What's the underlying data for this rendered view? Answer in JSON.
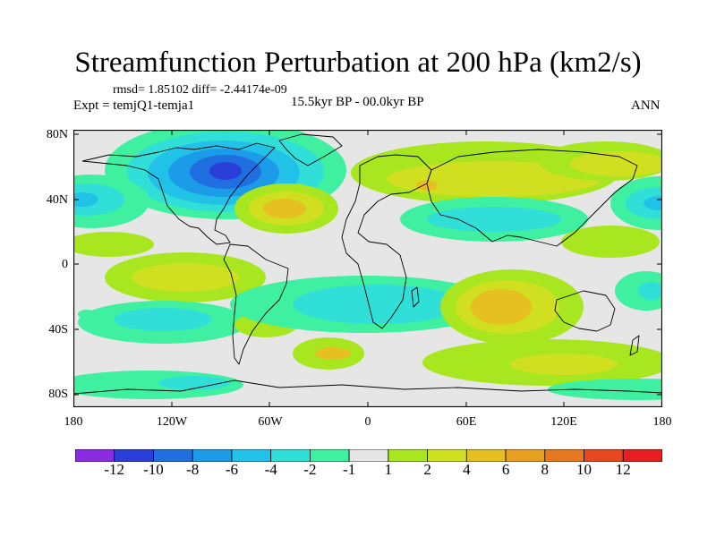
{
  "figure": {
    "title": "Streamfunction Perturbation at 200 hPa (km2/s)",
    "stats": "rmsd= 1.85102 diff= -2.44174e-09",
    "experiment": "Expt = temjQ1-temja1",
    "period": "15.5kyr BP - 00.0kyr BP",
    "season": "ANN"
  },
  "axes": {
    "y_ticks": [
      "80N",
      "40N",
      "0",
      "40S",
      "80S"
    ],
    "x_ticks": [
      "180",
      "120W",
      "60W",
      "0",
      "60E",
      "120E",
      "180"
    ]
  },
  "colorbar": {
    "labels": [
      "-12",
      "-10",
      "-8",
      "-6",
      "-4",
      "-2",
      "-1",
      "1",
      "2",
      "4",
      "6",
      "8",
      "10",
      "12"
    ],
    "colors": [
      "#8a2be2",
      "#2a3fd8",
      "#1f6fe0",
      "#1c9be8",
      "#22c2e8",
      "#30e0d8",
      "#3ef0a0",
      "#e6e6e6",
      "#a8e620",
      "#d0e020",
      "#e6c020",
      "#e8a020",
      "#e87820",
      "#e84820",
      "#e81e1e"
    ]
  },
  "colors": {
    "neutral": "#e6e6e6",
    "frame": "#000000"
  }
}
